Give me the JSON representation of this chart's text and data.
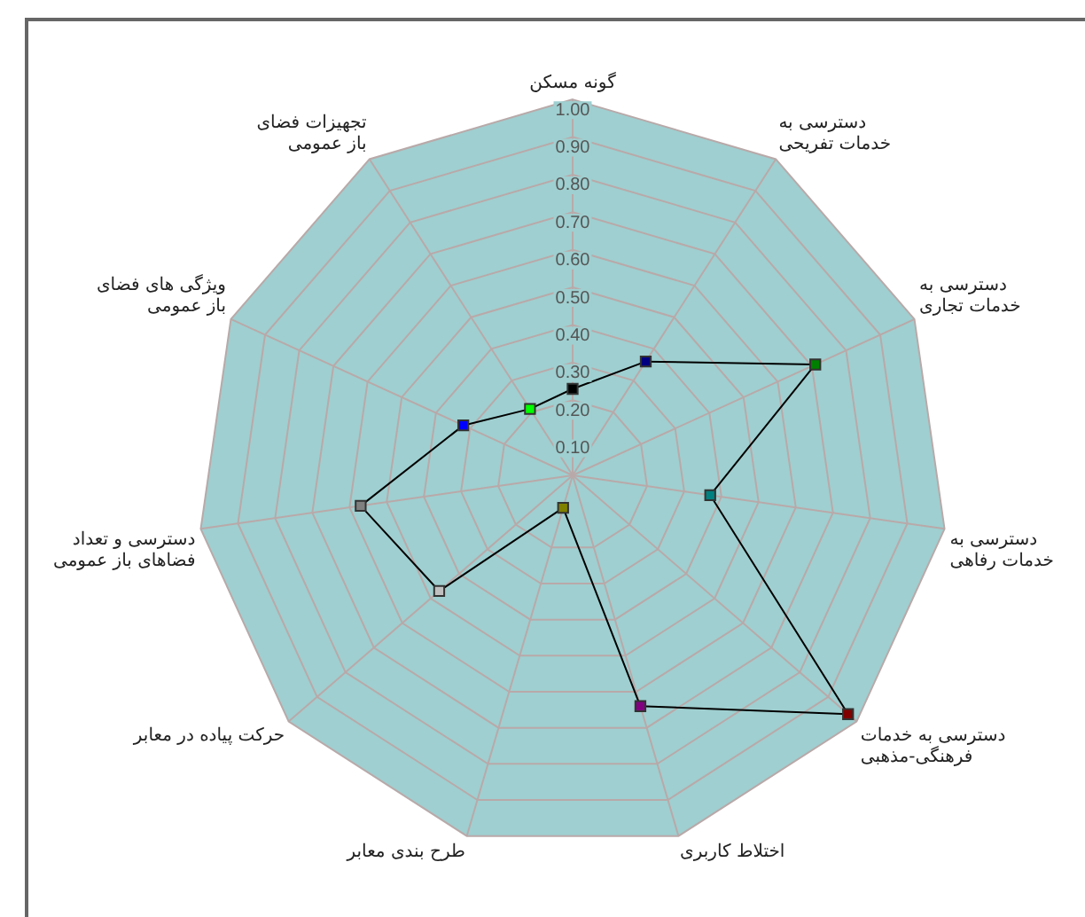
{
  "chart_data": {
    "type": "radar",
    "categories": [
      "گونه مسکن",
      "دسترسی به\nخدمات تفریحی",
      "دسترسی به\nخدمات تجاری",
      "دسترسی به\nخدمات رفاهی",
      "دسترسی به خدمات\nفرهنگی-مذهبی",
      "اختلاط کاربری",
      "طرح بندی معابر",
      "حرکت پیاده در معابر",
      "دسترسی و تعداد\nفضاهای باز عمومی",
      "ویژگی های فضای\nباز عمومی",
      "تجهیزات فضای\nباز عمومی"
    ],
    "series": [
      {
        "color": "#000000",
        "colors": [
          "#000000",
          "#000080",
          "#008000",
          "#008080",
          "#800000",
          "#800080",
          "#808000",
          "#c0c0c0",
          "#808080",
          "#0000ff",
          "#00ff00"
        ],
        "values": [
          0.23,
          0.36,
          0.71,
          0.37,
          0.97,
          0.64,
          0.09,
          0.47,
          0.57,
          0.32,
          0.21
        ]
      }
    ],
    "ylim": [
      0,
      1
    ],
    "yticks": [
      {
        "value": 0.1,
        "label": "0.10"
      },
      {
        "value": 0.2,
        "label": "0.20"
      },
      {
        "value": 0.3,
        "label": "0.30"
      },
      {
        "value": 0.4,
        "label": "0.40"
      },
      {
        "value": 0.5,
        "label": "0.50"
      },
      {
        "value": 0.6,
        "label": "0.60"
      },
      {
        "value": 0.7,
        "label": "0.70"
      },
      {
        "value": 0.8,
        "label": "0.80"
      },
      {
        "value": 0.9,
        "label": "0.90"
      },
      {
        "value": 1,
        "label": "1.00"
      }
    ],
    "grid": true,
    "legend": false,
    "marker": "square",
    "line_style": "solid"
  }
}
